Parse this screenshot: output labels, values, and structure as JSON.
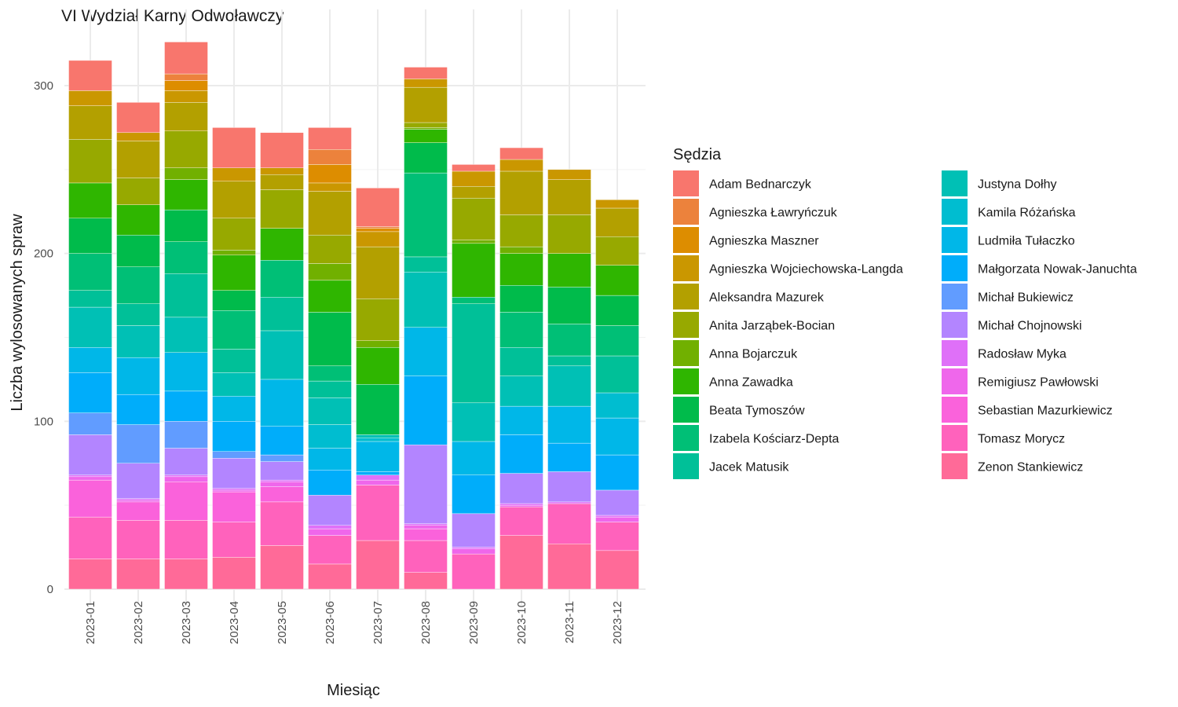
{
  "chart_data": {
    "type": "bar",
    "stacked": true,
    "title": "VI Wydział Karny Odwoławczy",
    "xlabel": "Miesiąc",
    "ylabel": "Liczba wylosowanych spraw",
    "ylim": [
      0,
      330
    ],
    "yticks": [
      0,
      100,
      200,
      300
    ],
    "grid": true,
    "legend_title": "Sędzia",
    "legend_position": "right",
    "categories": [
      "2023-01",
      "2023-02",
      "2023-03",
      "2023-04",
      "2023-05",
      "2023-06",
      "2023-07",
      "2023-08",
      "2023-09",
      "2023-10",
      "2023-11",
      "2023-12"
    ],
    "series": [
      {
        "name": "Adam Bednarczyk",
        "color": "#F8766D",
        "values": [
          18,
          18,
          19,
          24,
          21,
          13,
          23,
          7,
          4,
          7,
          0,
          0
        ]
      },
      {
        "name": "Agnieszka Ławryńczuk",
        "color": "#EC823C",
        "values": [
          0,
          0,
          4,
          0,
          0,
          9,
          1,
          0,
          0,
          0,
          0,
          0
        ]
      },
      {
        "name": "Agnieszka Maszner",
        "color": "#DD8D00",
        "values": [
          0,
          0,
          6,
          0,
          0,
          11,
          2,
          0,
          0,
          0,
          0,
          0
        ]
      },
      {
        "name": "Agnieszka Wojciechowska-Langda",
        "color": "#CA9700",
        "values": [
          9,
          5,
          7,
          8,
          4,
          5,
          9,
          5,
          9,
          7,
          6,
          5
        ]
      },
      {
        "name": "Aleksandra Mazurek",
        "color": "#B3A000",
        "values": [
          20,
          22,
          17,
          22,
          9,
          26,
          31,
          21,
          7,
          26,
          21,
          17
        ]
      },
      {
        "name": "Anita Jarząbek-Bocian",
        "color": "#97A900",
        "values": [
          26,
          16,
          22,
          19,
          23,
          17,
          25,
          3,
          25,
          19,
          23,
          17
        ]
      },
      {
        "name": "Anna Bojarczuk",
        "color": "#71B000",
        "values": [
          0,
          0,
          7,
          3,
          0,
          10,
          4,
          1,
          2,
          4,
          0,
          0
        ]
      },
      {
        "name": "Anna Zawadka",
        "color": "#2FB600",
        "values": [
          21,
          18,
          18,
          21,
          19,
          19,
          22,
          8,
          32,
          19,
          20,
          18
        ]
      },
      {
        "name": "Beata Tymoszów",
        "color": "#00BB4B",
        "values": [
          21,
          19,
          19,
          12,
          0,
          32,
          30,
          18,
          0,
          16,
          22,
          18
        ]
      },
      {
        "name": "Izabela Kościarz-Depta",
        "color": "#00BF76",
        "values": [
          22,
          22,
          19,
          23,
          22,
          9,
          0,
          50,
          4,
          21,
          19,
          18
        ]
      },
      {
        "name": "Jacek Matusik",
        "color": "#00C098",
        "values": [
          10,
          13,
          26,
          14,
          20,
          10,
          0,
          9,
          59,
          17,
          6,
          22
        ]
      },
      {
        "name": "Justyna Dołhy",
        "color": "#00C0B5",
        "values": [
          24,
          19,
          21,
          14,
          29,
          16,
          2,
          33,
          23,
          18,
          24,
          0
        ]
      },
      {
        "name": "Kamila Różańska",
        "color": "#00BDD0",
        "values": [
          0,
          0,
          0,
          0,
          0,
          14,
          2,
          0,
          0,
          0,
          0,
          15
        ]
      },
      {
        "name": "Ludmiła Tułaczko",
        "color": "#00B7E8",
        "values": [
          15,
          22,
          23,
          15,
          28,
          13,
          18,
          29,
          20,
          17,
          22,
          22
        ]
      },
      {
        "name": "Małgorzata Nowak-Januchta",
        "color": "#00ADFA",
        "values": [
          24,
          18,
          18,
          18,
          17,
          15,
          2,
          41,
          23,
          23,
          17,
          21
        ]
      },
      {
        "name": "Michał Bukiewicz",
        "color": "#619CFF",
        "values": [
          13,
          23,
          16,
          4,
          4,
          0,
          0,
          0,
          0,
          0,
          0,
          0
        ]
      },
      {
        "name": "Michał Chojnowski",
        "color": "#B385FF",
        "values": [
          24,
          21,
          16,
          18,
          11,
          18,
          0,
          47,
          20,
          18,
          18,
          15
        ]
      },
      {
        "name": "Radosław Myka",
        "color": "#DF70F8",
        "values": [
          1,
          1,
          1,
          1,
          1,
          2,
          3,
          1,
          1,
          1,
          1,
          1
        ]
      },
      {
        "name": "Remigiusz Pawłowski",
        "color": "#EF67EB",
        "values": [
          2,
          1,
          3,
          1,
          3,
          4,
          3,
          2,
          3,
          1,
          0,
          3
        ]
      },
      {
        "name": "Sebastian Mazurkiewicz",
        "color": "#FA62DB",
        "values": [
          22,
          11,
          23,
          18,
          9,
          0,
          0,
          7,
          0,
          0,
          0,
          0
        ]
      },
      {
        "name": "Tomasz Morycz",
        "color": "#FF62BC",
        "values": [
          25,
          23,
          23,
          21,
          26,
          17,
          33,
          19,
          21,
          17,
          24,
          17
        ]
      },
      {
        "name": "Zenon Stankiewicz",
        "color": "#FF6A98",
        "values": [
          18,
          18,
          18,
          19,
          26,
          15,
          29,
          10,
          0,
          32,
          27,
          23
        ]
      }
    ]
  }
}
